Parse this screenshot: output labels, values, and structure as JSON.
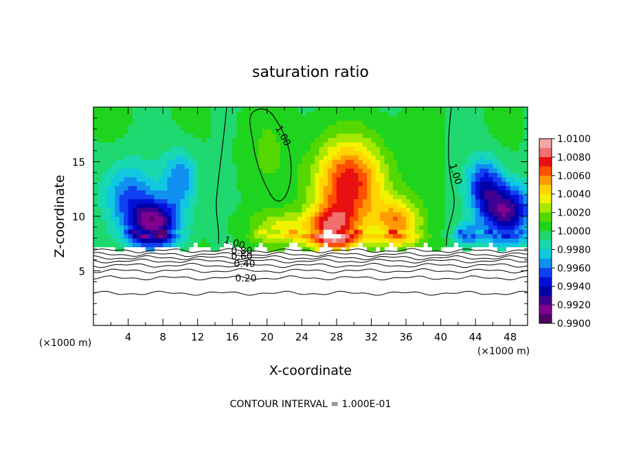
{
  "chart_data": {
    "type": "heatmap",
    "title": "saturation ratio",
    "xlabel": "X-coordinate",
    "ylabel": "Z-coordinate",
    "x_unit_left": "(×1000 m)",
    "x_unit_right": "(×1000 m)",
    "xlim": [
      0,
      50
    ],
    "ylim": [
      0,
      20
    ],
    "x_ticks": [
      4,
      8,
      12,
      16,
      20,
      24,
      28,
      32,
      36,
      40,
      44,
      48
    ],
    "y_ticks": [
      5,
      10,
      15
    ],
    "footer": "CONTOUR INTERVAL = 1.000E-01",
    "colorbar": {
      "min": 0.99,
      "max": 1.01,
      "labels": [
        "1.0100",
        "1.0080",
        "1.0060",
        "1.0040",
        "1.0020",
        "1.0000",
        "0.9980",
        "0.9960",
        "0.9940",
        "0.9920",
        "0.9900"
      ],
      "colors": [
        "#f4a7a7",
        "#f07070",
        "#e81010",
        "#ff5000",
        "#ff9a00",
        "#ffd400",
        "#f2f200",
        "#a8e800",
        "#55d800",
        "#1ed41e",
        "#20d870",
        "#18d8b0",
        "#10c8e0",
        "#1090f0",
        "#1040f0",
        "#0010d8",
        "#0000a8",
        "#400090",
        "#800090",
        "#500060"
      ]
    },
    "contour_labels": [
      "1.00",
      "1.00",
      "1.00",
      "0.80",
      "0.60",
      "0.40",
      "0.20"
    ],
    "blobs": [
      {
        "x": 29.5,
        "y": 13.0,
        "sx": 4.2,
        "sy": 4.0,
        "a": 0.0075
      },
      {
        "x": 27.5,
        "y": 9.0,
        "sx": 2.8,
        "sy": 2.0,
        "a": 0.006
      },
      {
        "x": 35.0,
        "y": 9.5,
        "sx": 2.6,
        "sy": 2.0,
        "a": 0.0055
      },
      {
        "x": 22.0,
        "y": 9.0,
        "sx": 4.0,
        "sy": 1.5,
        "a": 0.003
      },
      {
        "x": 20.0,
        "y": 16.0,
        "sx": 3.0,
        "sy": 4.0,
        "a": 0.001
      },
      {
        "x": 7.0,
        "y": 9.5,
        "sx": 3.0,
        "sy": 2.0,
        "a": -0.008
      },
      {
        "x": 4.0,
        "y": 12.0,
        "sx": 3.0,
        "sy": 3.0,
        "a": -0.004
      },
      {
        "x": 10.0,
        "y": 13.5,
        "sx": 2.0,
        "sy": 2.5,
        "a": -0.004
      },
      {
        "x": 47.5,
        "y": 10.5,
        "sx": 2.8,
        "sy": 2.5,
        "a": -0.008
      },
      {
        "x": 45.0,
        "y": 13.0,
        "sx": 2.0,
        "sy": 2.5,
        "a": -0.005
      },
      {
        "x": 43.0,
        "y": 8.5,
        "sx": 1.5,
        "sy": 1.0,
        "a": -0.003
      }
    ]
  }
}
